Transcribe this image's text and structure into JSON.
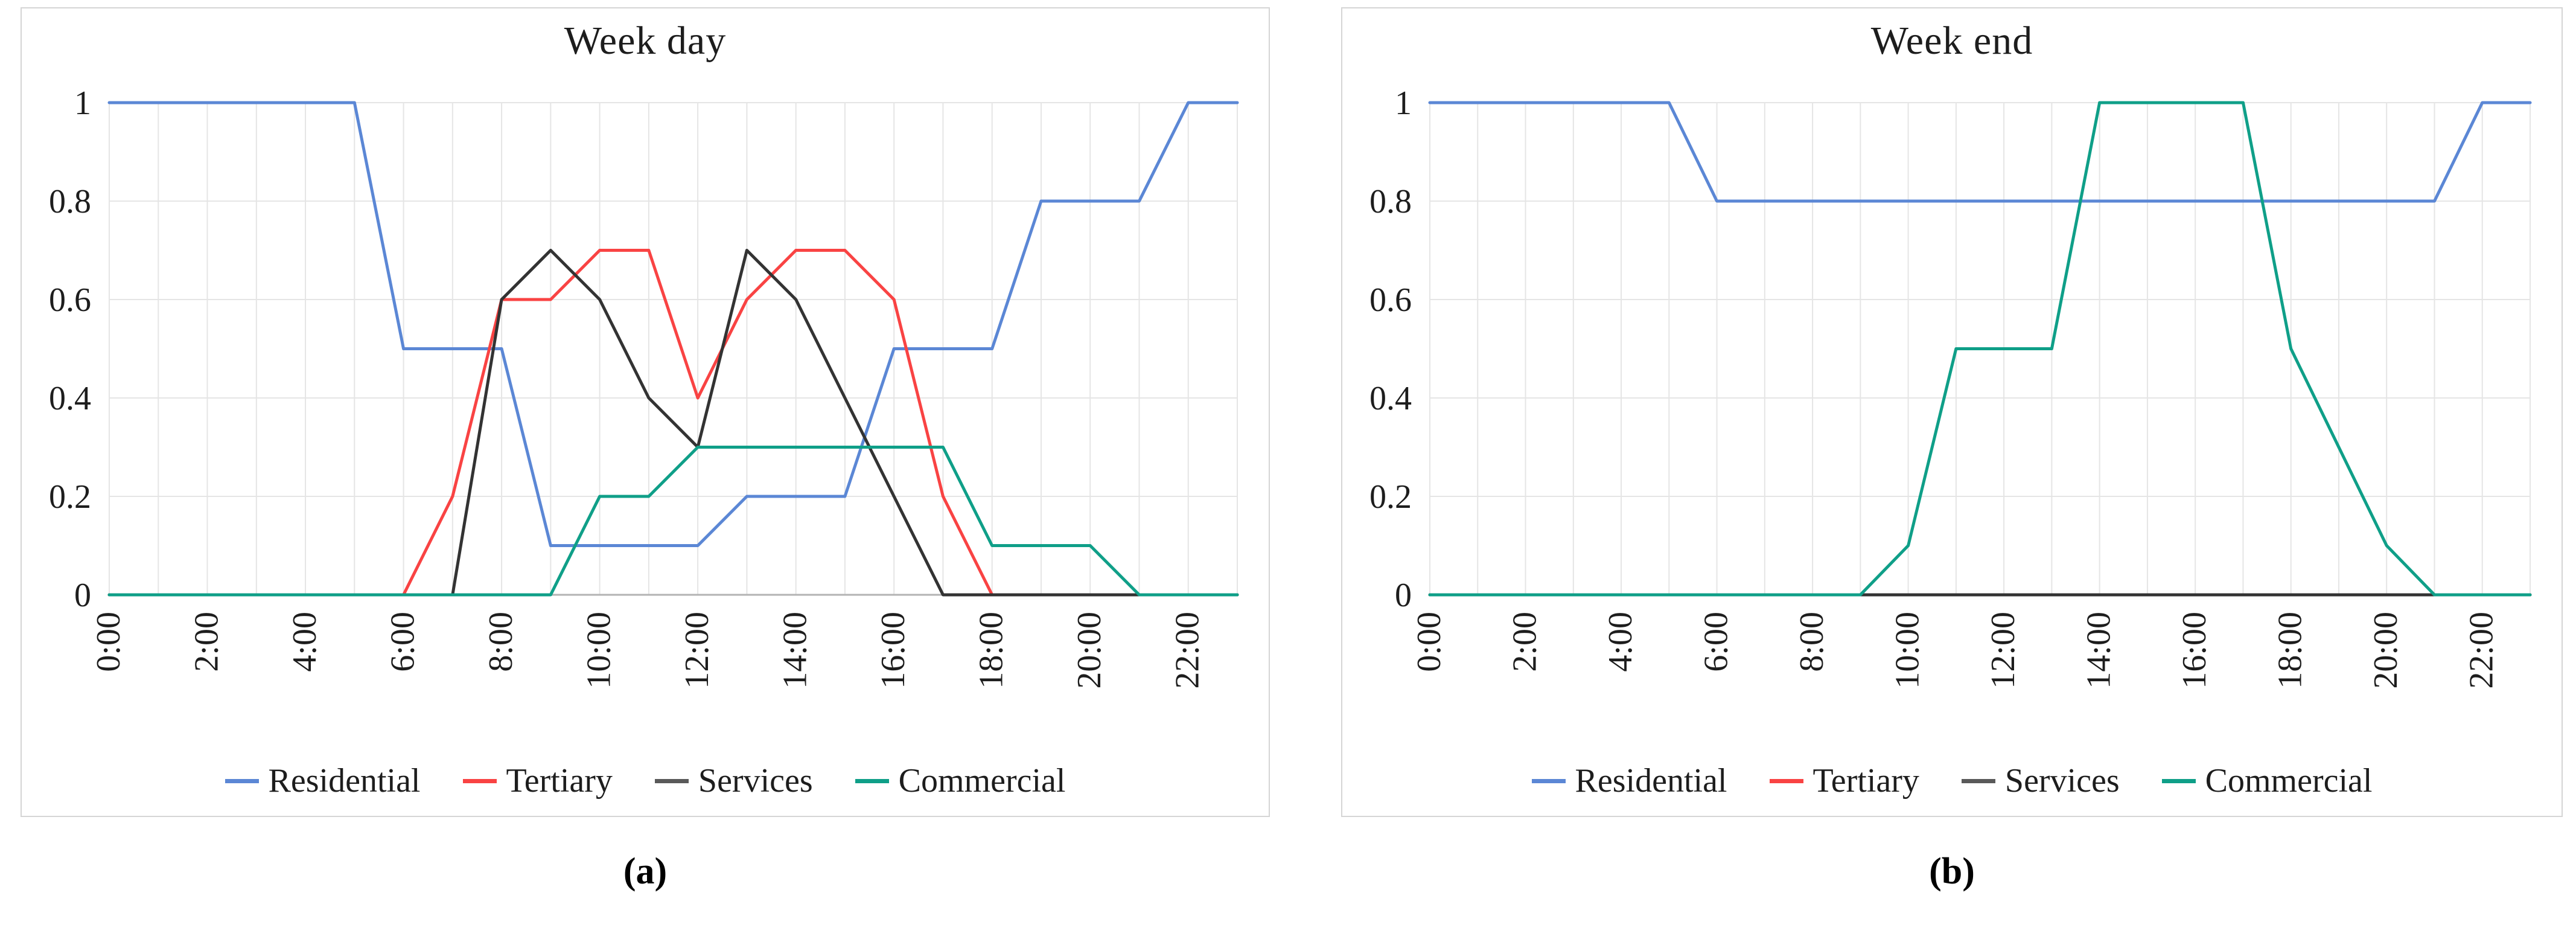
{
  "figure": {
    "captions": [
      "(a)",
      "(b)"
    ],
    "background_color": "#ffffff",
    "panel_border_color": "#d5d5d5",
    "gridline_color": "#e5e5e5",
    "axis_line_color": "#b3b3b3"
  },
  "chart_data": [
    {
      "type": "line",
      "title": "Week day",
      "x_categories": [
        "0:00",
        "1:00",
        "2:00",
        "3:00",
        "4:00",
        "5:00",
        "6:00",
        "7:00",
        "8:00",
        "9:00",
        "10:00",
        "11:00",
        "12:00",
        "13:00",
        "14:00",
        "15:00",
        "16:00",
        "17:00",
        "18:00",
        "19:00",
        "20:00",
        "21:00",
        "22:00",
        "23:00"
      ],
      "x_tick_interval": 2,
      "x_tick_labels": [
        "0:00",
        "2:00",
        "4:00",
        "6:00",
        "8:00",
        "10:00",
        "12:00",
        "14:00",
        "16:00",
        "18:00",
        "20:00",
        "22:00"
      ],
      "ylim": [
        0,
        1
      ],
      "yticks": [
        0,
        0.2,
        0.4,
        0.6,
        0.8,
        1
      ],
      "ytick_labels": [
        "0",
        "0.2",
        "0.4",
        "0.6",
        "0.8",
        "1"
      ],
      "grid": true,
      "legend_position": "bottom",
      "series": [
        {
          "name": "Residential",
          "color": "#5b87d5",
          "values": [
            1,
            1,
            1,
            1,
            1,
            1,
            0.5,
            0.5,
            0.5,
            0.1,
            0.1,
            0.1,
            0.1,
            0.2,
            0.2,
            0.2,
            0.5,
            0.5,
            0.5,
            0.8,
            0.8,
            0.8,
            1,
            1
          ]
        },
        {
          "name": "Tertiary",
          "color": "#f94343",
          "values": [
            0,
            0,
            0,
            0,
            0,
            0,
            0,
            0.2,
            0.6,
            0.6,
            0.7,
            0.7,
            0.4,
            0.6,
            0.7,
            0.7,
            0.6,
            0.2,
            0,
            0,
            0,
            0,
            0,
            0
          ]
        },
        {
          "name": "Services",
          "color": "#333333",
          "legend_color": "#595959",
          "values": [
            0,
            0,
            0,
            0,
            0,
            0,
            0,
            0,
            0.6,
            0.7,
            0.6,
            0.4,
            0.3,
            0.7,
            0.6,
            0.4,
            0.2,
            0,
            0,
            0,
            0,
            0,
            0,
            0
          ]
        },
        {
          "name": "Commercial",
          "color": "#0f9f88",
          "values": [
            0,
            0,
            0,
            0,
            0,
            0,
            0,
            0,
            0,
            0,
            0.2,
            0.2,
            0.3,
            0.3,
            0.3,
            0.3,
            0.3,
            0.3,
            0.1,
            0.1,
            0.1,
            0,
            0,
            0
          ]
        }
      ]
    },
    {
      "type": "line",
      "title": "Week end",
      "x_categories": [
        "0:00",
        "1:00",
        "2:00",
        "3:00",
        "4:00",
        "5:00",
        "6:00",
        "7:00",
        "8:00",
        "9:00",
        "10:00",
        "11:00",
        "12:00",
        "13:00",
        "14:00",
        "15:00",
        "16:00",
        "17:00",
        "18:00",
        "19:00",
        "20:00",
        "21:00",
        "22:00",
        "23:00"
      ],
      "x_tick_interval": 2,
      "x_tick_labels": [
        "0:00",
        "2:00",
        "4:00",
        "6:00",
        "8:00",
        "10:00",
        "12:00",
        "14:00",
        "16:00",
        "18:00",
        "20:00",
        "22:00"
      ],
      "ylim": [
        0,
        1
      ],
      "yticks": [
        0,
        0.2,
        0.4,
        0.6,
        0.8,
        1
      ],
      "ytick_labels": [
        "0",
        "0.2",
        "0.4",
        "0.6",
        "0.8",
        "1"
      ],
      "grid": true,
      "legend_position": "bottom",
      "series": [
        {
          "name": "Residential",
          "color": "#5b87d5",
          "values": [
            1,
            1,
            1,
            1,
            1,
            1,
            0.8,
            0.8,
            0.8,
            0.8,
            0.8,
            0.8,
            0.8,
            0.8,
            0.8,
            0.8,
            0.8,
            0.8,
            0.8,
            0.8,
            0.8,
            0.8,
            1,
            1
          ]
        },
        {
          "name": "Tertiary",
          "color": "#f94343",
          "values": [
            0,
            0,
            0,
            0,
            0,
            0,
            0,
            0,
            0,
            0,
            0,
            0,
            0,
            0,
            0,
            0,
            0,
            0,
            0,
            0,
            0,
            0,
            0,
            0
          ]
        },
        {
          "name": "Services",
          "color": "#333333",
          "legend_color": "#595959",
          "values": [
            0,
            0,
            0,
            0,
            0,
            0,
            0,
            0,
            0,
            0,
            0,
            0,
            0,
            0,
            0,
            0,
            0,
            0,
            0,
            0,
            0,
            0,
            0,
            0
          ]
        },
        {
          "name": "Commercial",
          "color": "#0f9f88",
          "values": [
            0,
            0,
            0,
            0,
            0,
            0,
            0,
            0,
            0,
            0,
            0.1,
            0.5,
            0.5,
            0.5,
            1,
            1,
            1,
            1,
            0.5,
            0.3,
            0.1,
            0,
            0,
            0
          ]
        }
      ]
    }
  ]
}
